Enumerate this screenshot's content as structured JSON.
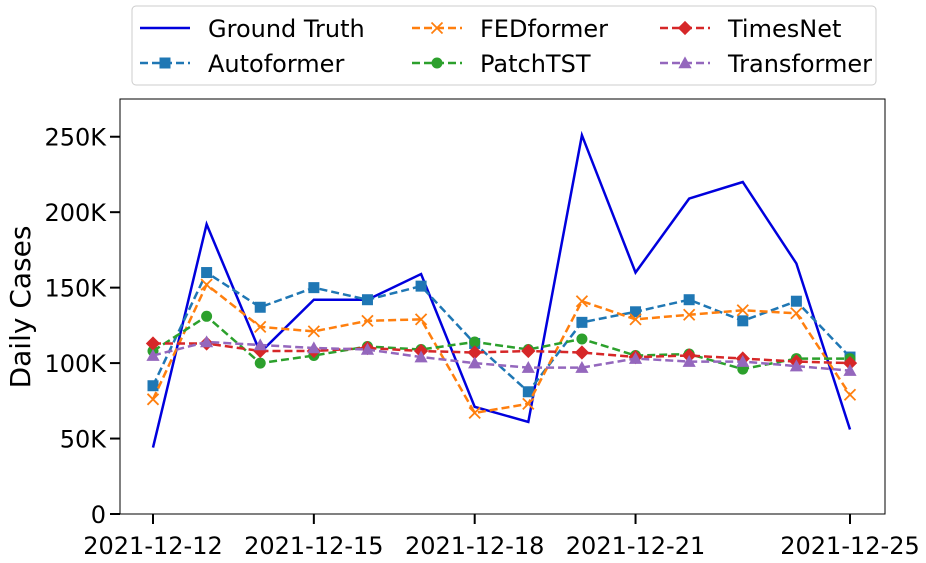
{
  "chart_data": {
    "type": "line",
    "title": "",
    "xlabel": "",
    "ylabel": "Daily Cases",
    "x": [
      "2021-12-12",
      "2021-12-13",
      "2021-12-14",
      "2021-12-15",
      "2021-12-16",
      "2021-12-17",
      "2021-12-18",
      "2021-12-19",
      "2021-12-20",
      "2021-12-21",
      "2021-12-22",
      "2021-12-23",
      "2021-12-24",
      "2021-12-25"
    ],
    "x_ticks": [
      "2021-12-12",
      "2021-12-15",
      "2021-12-18",
      "2021-12-21",
      "2021-12-25"
    ],
    "y_ticks": [
      0,
      50000,
      100000,
      150000,
      200000,
      250000
    ],
    "y_tick_labels": [
      "0",
      "50K",
      "100K",
      "150K",
      "200K",
      "250K"
    ],
    "ylim": [
      0,
      275000
    ],
    "grid": false,
    "legend_placement": "top (above plot, 3 columns)",
    "series": [
      {
        "name": "Ground Truth",
        "color": "#0000dd",
        "style": "solid",
        "marker": "none",
        "values": [
          44000,
          192000,
          107000,
          142000,
          142000,
          159000,
          71000,
          61000,
          251000,
          160000,
          209000,
          220000,
          166000,
          56000
        ]
      },
      {
        "name": "Autoformer",
        "color": "#1f77b4",
        "style": "dashed",
        "marker": "square",
        "values": [
          85000,
          160000,
          137000,
          150000,
          142000,
          151000,
          113000,
          81000,
          127000,
          134000,
          142000,
          128000,
          141000,
          104000
        ]
      },
      {
        "name": "FEDformer",
        "color": "#ff7f0e",
        "style": "dashed",
        "marker": "x",
        "values": [
          76000,
          152000,
          124000,
          121000,
          128000,
          129000,
          67000,
          73000,
          141000,
          129000,
          132000,
          135000,
          133000,
          79000
        ]
      },
      {
        "name": "PatchTST",
        "color": "#2ca02c",
        "style": "dashed",
        "marker": "circle",
        "values": [
          108000,
          131000,
          100000,
          105000,
          111000,
          109000,
          114000,
          109000,
          116000,
          105000,
          106000,
          96000,
          103000,
          103000
        ]
      },
      {
        "name": "TimesNet",
        "color": "#d62728",
        "style": "dashed",
        "marker": "diamond",
        "values": [
          113000,
          113000,
          108000,
          108000,
          110000,
          108000,
          107000,
          108000,
          107000,
          104000,
          105000,
          103000,
          101000,
          100000
        ]
      },
      {
        "name": "Transformer",
        "color": "#9467bd",
        "style": "dashed",
        "marker": "triangle",
        "values": [
          105000,
          114000,
          112000,
          110000,
          109000,
          104000,
          100000,
          97000,
          97000,
          103000,
          101000,
          101000,
          98000,
          95000
        ]
      }
    ]
  }
}
